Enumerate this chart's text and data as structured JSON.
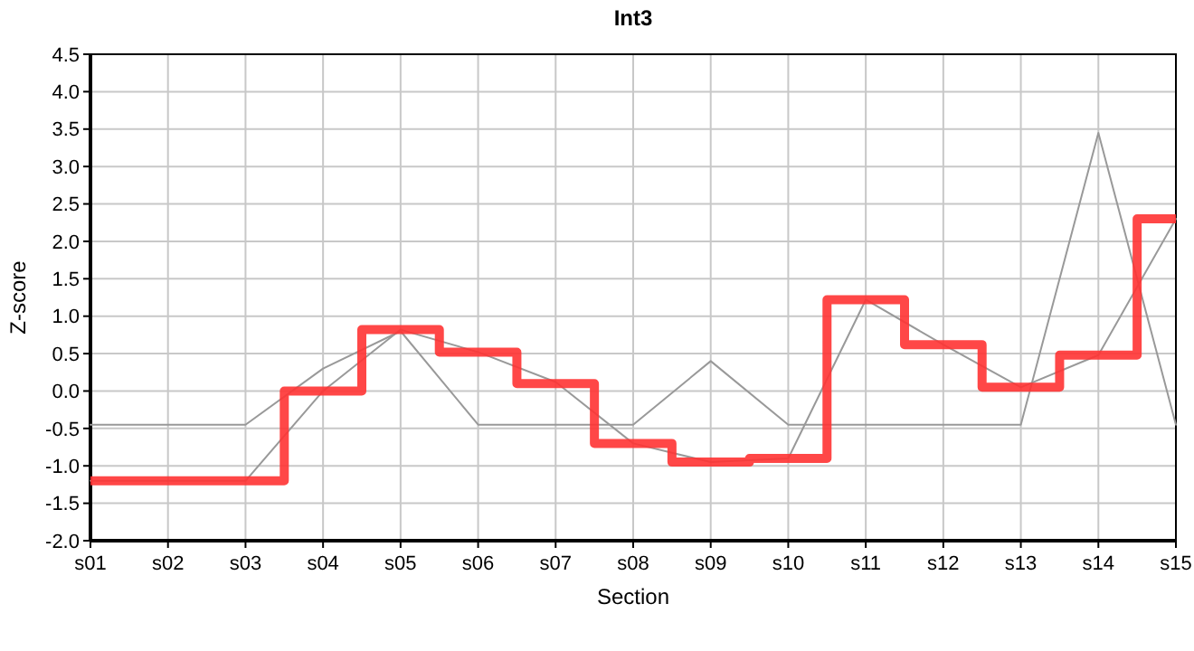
{
  "chart_data": {
    "type": "line",
    "title": "Int3",
    "xlabel": "Section",
    "ylabel": "Z-score",
    "categories": [
      "s01",
      "s02",
      "s03",
      "s04",
      "s05",
      "s06",
      "s07",
      "s08",
      "s09",
      "s10",
      "s11",
      "s12",
      "s13",
      "s14",
      "s15"
    ],
    "series": [
      {
        "color": "#999999",
        "values": [
          -0.45,
          -0.45,
          -0.45,
          0.3,
          0.8,
          -0.45,
          -0.45,
          -0.45,
          0.4,
          -0.45,
          -0.45,
          -0.45,
          -0.45,
          3.45,
          -0.45
        ]
      },
      {
        "color": "#999999",
        "values": [
          -1.2,
          -1.2,
          -1.2,
          0.0,
          0.82,
          0.52,
          0.12,
          -0.7,
          -0.95,
          -0.9,
          1.22,
          0.62,
          0.05,
          0.48,
          2.3
        ]
      },
      {
        "type": "step",
        "color": "#ff3333",
        "values": [
          -1.2,
          -1.2,
          -1.2,
          0.0,
          0.82,
          0.52,
          0.1,
          -0.7,
          -0.95,
          -0.9,
          1.22,
          0.62,
          0.05,
          0.48,
          2.3
        ]
      }
    ],
    "ylim": [
      -2,
      4.5
    ],
    "yticks": [
      {
        "value": -2,
        "label": "-2.0"
      },
      {
        "value": -1.5,
        "label": "-1.5"
      },
      {
        "value": -1,
        "label": "-1.0"
      },
      {
        "value": -0.5,
        "label": "-0.5"
      },
      {
        "value": 0,
        "label": "0.0"
      },
      {
        "value": 0.5,
        "label": "0.5"
      },
      {
        "value": 1,
        "label": "1.0"
      },
      {
        "value": 1.5,
        "label": "1.5"
      },
      {
        "value": 2,
        "label": "2.0"
      },
      {
        "value": 2.5,
        "label": "2.5"
      },
      {
        "value": 3,
        "label": "3.0"
      },
      {
        "value": 3.5,
        "label": "3.5"
      },
      {
        "value": 4,
        "label": "4.0"
      },
      {
        "value": 4.5,
        "label": "4.5"
      }
    ],
    "grid": true,
    "line_style": "solid",
    "marker": "none"
  }
}
